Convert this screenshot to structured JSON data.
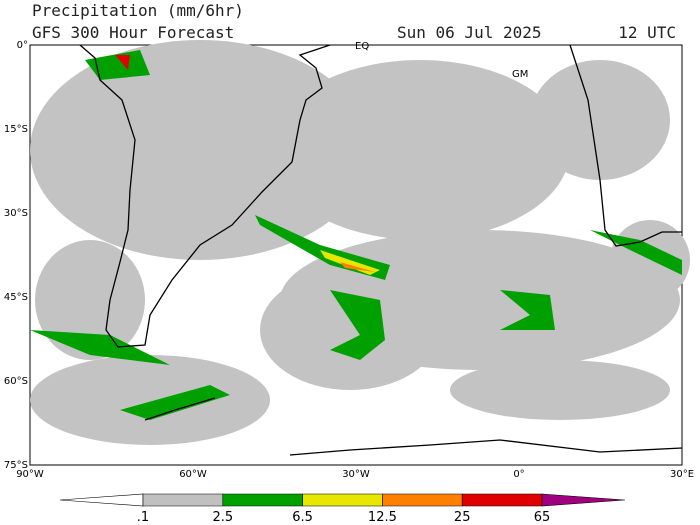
{
  "header": {
    "title": "Precipitation (mm/6hr)",
    "subtitle": "GFS 300 Hour Forecast",
    "date": "Sun 06 Jul 2025",
    "time": "12 UTC"
  },
  "map": {
    "lat_labels": [
      "0°",
      "15°S",
      "30°S",
      "45°S",
      "60°S",
      "75°S"
    ],
    "lon_labels": [
      "90°W",
      "60°W",
      "30°W",
      "0°",
      "30°E"
    ],
    "markers": [
      "EQ",
      "GM"
    ]
  },
  "legend": {
    "labels": [
      ".1",
      "2.5",
      "6.5",
      "12.5",
      "25",
      "65"
    ],
    "colors": [
      "#ffffff",
      "#c0c0c0",
      "#00a000",
      "#e6e600",
      "#ff8000",
      "#e00000",
      "#a00080"
    ]
  }
}
